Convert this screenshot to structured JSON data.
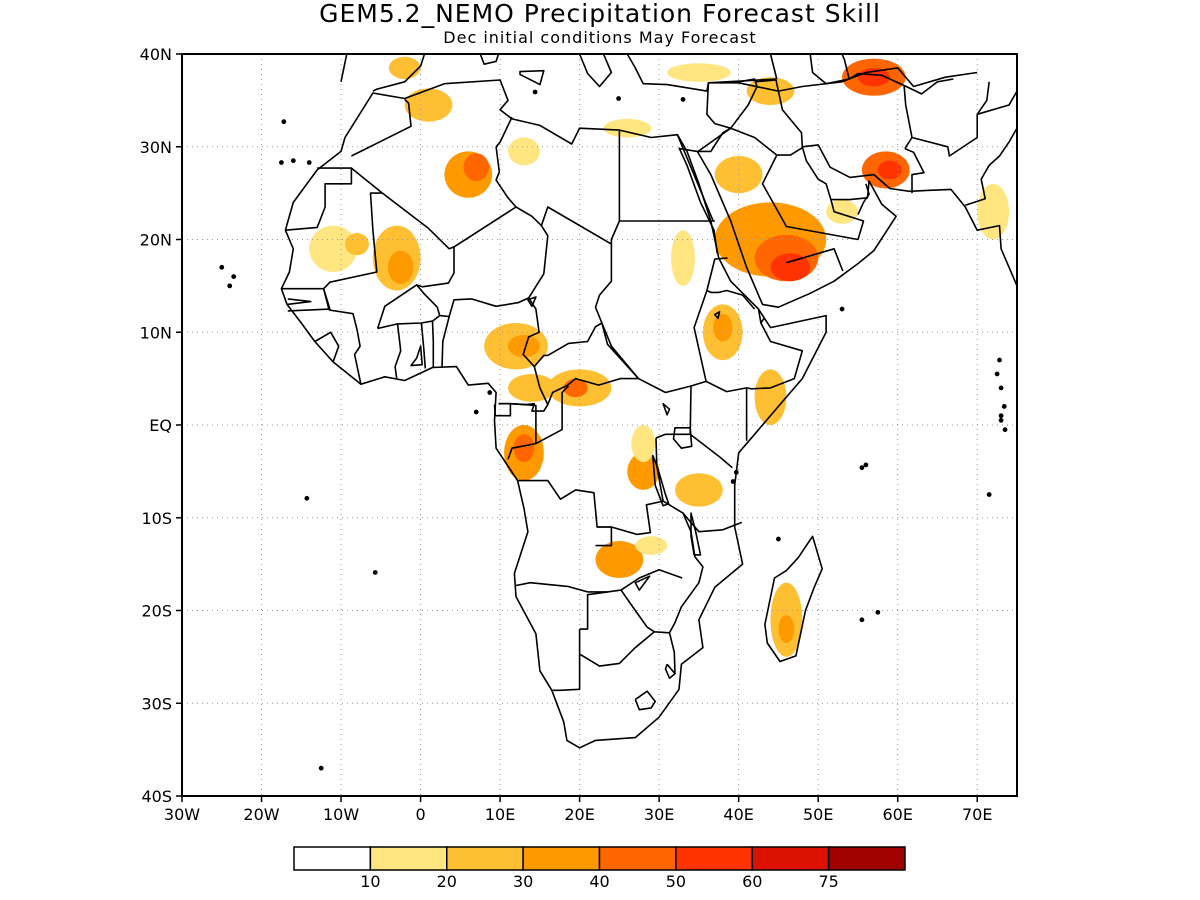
{
  "header": {
    "title": "GEM5.2_NEMO Precipitation Forecast Skill",
    "subtitle": "Dec initial conditions   May Forecast"
  },
  "map": {
    "lon_range": [
      -30,
      75
    ],
    "lat_range": [
      -40,
      40
    ],
    "lat_ticks": [
      {
        "value": 40,
        "label": "40N"
      },
      {
        "value": 30,
        "label": "30N"
      },
      {
        "value": 20,
        "label": "20N"
      },
      {
        "value": 10,
        "label": "10N"
      },
      {
        "value": 0,
        "label": "EQ"
      },
      {
        "value": -10,
        "label": "10S"
      },
      {
        "value": -20,
        "label": "20S"
      },
      {
        "value": -30,
        "label": "30S"
      },
      {
        "value": -40,
        "label": "40S"
      }
    ],
    "lon_ticks": [
      {
        "value": -30,
        "label": "30W"
      },
      {
        "value": -20,
        "label": "20W"
      },
      {
        "value": -10,
        "label": "10W"
      },
      {
        "value": 0,
        "label": "0"
      },
      {
        "value": 10,
        "label": "10E"
      },
      {
        "value": 20,
        "label": "20E"
      },
      {
        "value": 30,
        "label": "30E"
      },
      {
        "value": 40,
        "label": "40E"
      },
      {
        "value": 50,
        "label": "50E"
      },
      {
        "value": 60,
        "label": "60E"
      },
      {
        "value": 70,
        "label": "70E"
      }
    ],
    "grid": true
  },
  "colorbar": {
    "colors": [
      "#ffffff",
      "#ffe680",
      "#ffbf33",
      "#ff9900",
      "#ff6600",
      "#ff3300",
      "#dd1100",
      "#a00000"
    ],
    "labels": [
      "10",
      "20",
      "30",
      "40",
      "50",
      "60",
      "75"
    ]
  },
  "skill_regions": [
    {
      "lon": 1,
      "lat": 34.5,
      "rx": 3,
      "ry": 1.8,
      "level": 2
    },
    {
      "lon": -2,
      "lat": 38.5,
      "rx": 2,
      "ry": 1.2,
      "level": 2
    },
    {
      "lon": 6,
      "lat": 27,
      "rx": 3,
      "ry": 2.5,
      "level": 3
    },
    {
      "lon": 7,
      "lat": 27.8,
      "rx": 1.6,
      "ry": 1.5,
      "level": 4
    },
    {
      "lon": 13,
      "lat": 29.5,
      "rx": 2,
      "ry": 1.5,
      "level": 1
    },
    {
      "lon": -11,
      "lat": 19,
      "rx": 3,
      "ry": 2.5,
      "level": 1
    },
    {
      "lon": -8,
      "lat": 19.5,
      "rx": 1.5,
      "ry": 1.2,
      "level": 2
    },
    {
      "lon": -3,
      "lat": 18,
      "rx": 3,
      "ry": 3.5,
      "level": 2
    },
    {
      "lon": -2.5,
      "lat": 17,
      "rx": 1.6,
      "ry": 1.8,
      "level": 3
    },
    {
      "lon": 12,
      "lat": 8.5,
      "rx": 4,
      "ry": 2.5,
      "level": 2
    },
    {
      "lon": 13,
      "lat": 8.5,
      "rx": 2,
      "ry": 1.2,
      "level": 3
    },
    {
      "lon": 14,
      "lat": 4,
      "rx": 3,
      "ry": 1.5,
      "level": 2
    },
    {
      "lon": 20,
      "lat": 4,
      "rx": 4,
      "ry": 2,
      "level": 2
    },
    {
      "lon": 19.5,
      "lat": 4,
      "rx": 1.5,
      "ry": 1,
      "level": 4
    },
    {
      "lon": 13,
      "lat": -3,
      "rx": 2.5,
      "ry": 3,
      "level": 3
    },
    {
      "lon": 13,
      "lat": -2.5,
      "rx": 1.3,
      "ry": 1.5,
      "level": 4
    },
    {
      "lon": 28,
      "lat": -5,
      "rx": 2,
      "ry": 2,
      "level": 3
    },
    {
      "lon": 35,
      "lat": -7,
      "rx": 3,
      "ry": 1.8,
      "level": 2
    },
    {
      "lon": 25,
      "lat": -14.5,
      "rx": 3,
      "ry": 2,
      "level": 3
    },
    {
      "lon": 29,
      "lat": -13,
      "rx": 2,
      "ry": 1,
      "level": 1
    },
    {
      "lon": 38,
      "lat": 10,
      "rx": 2.5,
      "ry": 3,
      "level": 2
    },
    {
      "lon": 38,
      "lat": 10.5,
      "rx": 1.2,
      "ry": 1.5,
      "level": 3
    },
    {
      "lon": 44,
      "lat": 3,
      "rx": 2,
      "ry": 3,
      "level": 2
    },
    {
      "lon": 46,
      "lat": -21,
      "rx": 2,
      "ry": 4,
      "level": 2
    },
    {
      "lon": 46,
      "lat": -22,
      "rx": 1,
      "ry": 1.5,
      "level": 3
    },
    {
      "lon": 44,
      "lat": 20,
      "rx": 7,
      "ry": 4,
      "level": 3
    },
    {
      "lon": 46,
      "lat": 18,
      "rx": 4,
      "ry": 2.5,
      "level": 4
    },
    {
      "lon": 46.5,
      "lat": 17,
      "rx": 2.5,
      "ry": 1.5,
      "level": 5
    },
    {
      "lon": 58.5,
      "lat": 27.5,
      "rx": 3,
      "ry": 2,
      "level": 4
    },
    {
      "lon": 59,
      "lat": 27.5,
      "rx": 1.5,
      "ry": 1,
      "level": 5
    },
    {
      "lon": 57,
      "lat": 37.5,
      "rx": 4,
      "ry": 2,
      "level": 4
    },
    {
      "lon": 57,
      "lat": 37.5,
      "rx": 2,
      "ry": 1,
      "level": 5
    },
    {
      "lon": 44,
      "lat": 36,
      "rx": 3,
      "ry": 1.5,
      "level": 2
    },
    {
      "lon": 35,
      "lat": 38,
      "rx": 4,
      "ry": 1,
      "level": 1
    },
    {
      "lon": 72,
      "lat": 23,
      "rx": 2,
      "ry": 3,
      "level": 1
    },
    {
      "lon": 53,
      "lat": 23,
      "rx": 2,
      "ry": 1.3,
      "level": 1
    },
    {
      "lon": 26,
      "lat": 32,
      "rx": 3,
      "ry": 1,
      "level": 1
    },
    {
      "lon": 28,
      "lat": -2,
      "rx": 1.5,
      "ry": 2,
      "level": 1
    },
    {
      "lon": 40,
      "lat": 27,
      "rx": 3,
      "ry": 2,
      "level": 2
    },
    {
      "lon": 33,
      "lat": 18,
      "rx": 1.5,
      "ry": 3,
      "level": 1
    }
  ]
}
